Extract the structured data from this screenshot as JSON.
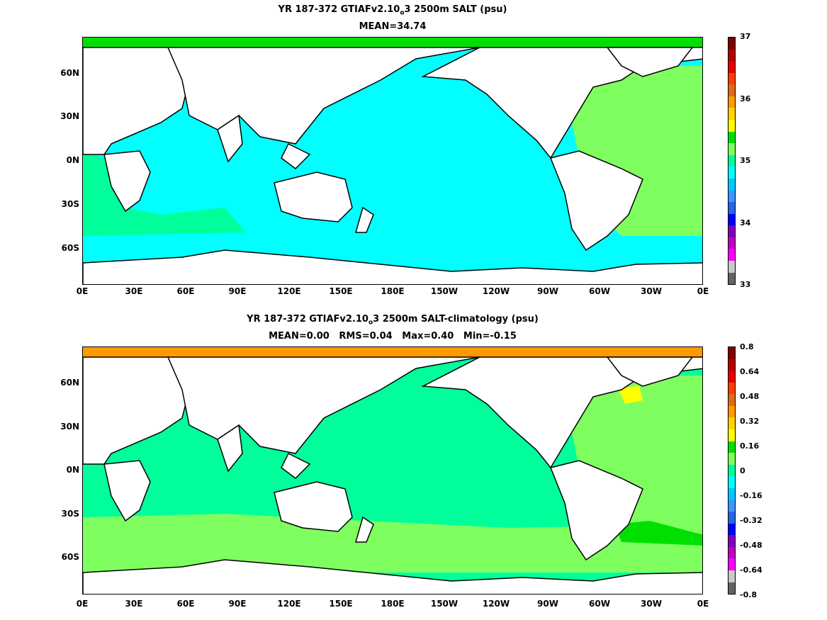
{
  "panels": [
    {
      "title_pre": "YR 187-372 GTIAFv2.10",
      "title_sub": "o",
      "title_post": "3 2500m SALT (psu)",
      "subtitle": "MEAN=34.74",
      "colorbar_labels": [
        "37",
        "36",
        "35",
        "34",
        "33"
      ],
      "colorbar_colors": [
        "#7f0000",
        "#b40000",
        "#e60000",
        "#ff3c00",
        "#e06a1b",
        "#ff9a00",
        "#ffd200",
        "#ffff00",
        "#00e000",
        "#7fff5f",
        "#00ff9a",
        "#00ffff",
        "#00c8ff",
        "#3c96ff",
        "#2864e6",
        "#0000ff",
        "#7f00bf",
        "#bf00bf",
        "#ff00ff",
        "#c8c8c8",
        "#646464"
      ],
      "ocean_color": "#00ffff",
      "atlantic_color": "#7fff5f",
      "south_band_color": "#00ff9a",
      "arctic_color": "#00e000"
    },
    {
      "title_pre": "YR 187-372 GTIAFv2.10",
      "title_sub": "o",
      "title_post": "3 2500m SALT-climatology (psu)",
      "subtitle": "MEAN=0.00   RMS=0.04   Max=0.40   Min=-0.15",
      "colorbar_labels": [
        "0.8",
        "0.64",
        "0.48",
        "0.32",
        "0.16",
        "0",
        "-0.16",
        "-0.32",
        "-0.48",
        "-0.64",
        "-0.8"
      ],
      "colorbar_colors": [
        "#7f0000",
        "#b40000",
        "#e60000",
        "#ff3c00",
        "#e06a1b",
        "#ff9a00",
        "#ffd200",
        "#ffff00",
        "#00e000",
        "#7fff5f",
        "#00ff9a",
        "#00ffff",
        "#00c8ff",
        "#3c96ff",
        "#2864e6",
        "#0000ff",
        "#7f00bf",
        "#bf00bf",
        "#ff00ff",
        "#c8c8c8",
        "#646464"
      ],
      "ocean_color": "#00ff9a",
      "atlantic_color": "#7fff5f",
      "south_band_color": "#7fff5f",
      "arctic_color": "#ff9a00"
    }
  ],
  "y_ticks": [
    "60N",
    "30N",
    "0N",
    "30S",
    "60S"
  ],
  "x_ticks": [
    "0E",
    "30E",
    "60E",
    "90E",
    "120E",
    "150E",
    "180E",
    "150W",
    "120W",
    "90W",
    "60W",
    "30W",
    "0E"
  ]
}
